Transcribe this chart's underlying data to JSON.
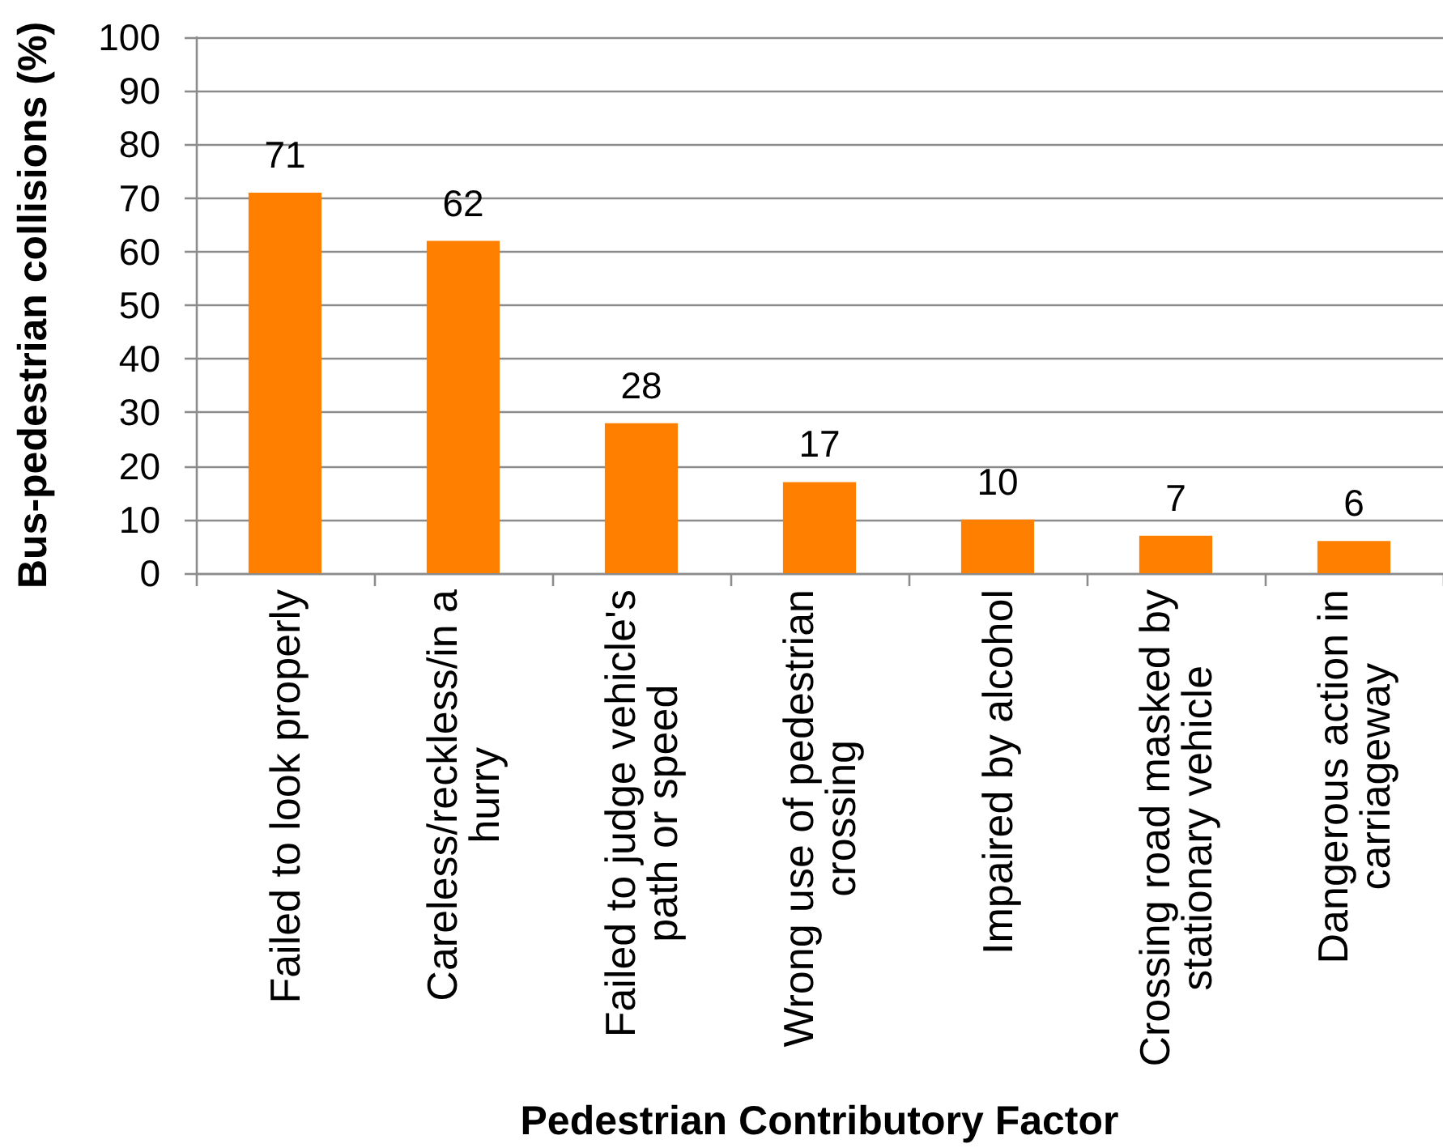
{
  "chart_data": {
    "type": "bar",
    "xlabel": "Pedestrian Contributory Factor",
    "ylabel": "Bus-pedestrian collisions (%)",
    "categories": [
      "Failed to look properly",
      "Careless/reckless/in a hurry",
      "Failed to judge vehicle's path or speed",
      "Wrong use of pedestrian crossing",
      "Impaired by alcohol",
      "Crossing road masked by stationary vehicle",
      "Dangerous action in carriageway"
    ],
    "values": [
      71,
      62,
      28,
      17,
      10,
      7,
      6
    ],
    "color": "#ff8000",
    "ylim": [
      0,
      100
    ],
    "yticks": [
      0,
      10,
      20,
      30,
      40,
      50,
      60,
      70,
      80,
      90,
      100
    ],
    "grid": "y",
    "data_labels": true
  }
}
